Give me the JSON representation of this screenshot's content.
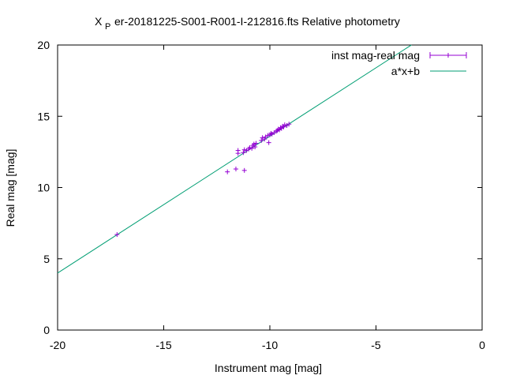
{
  "chart_data": {
    "type": "scatter",
    "title": "X_P er-20181225-S001-R001-I-212816.fts Relative photometry",
    "title_parts": {
      "main_glyph": "X",
      "sub_glyph": "P",
      "rest": "er-20181225-S001-R001-I-212816.fts Relative photometry"
    },
    "xlabel": "Instrument mag [mag]",
    "ylabel": "Real mag [mag]",
    "xlim": [
      -20,
      0
    ],
    "ylim": [
      0,
      20
    ],
    "xticks": [
      "-20",
      "-15",
      "-10",
      "-5",
      "0"
    ],
    "yticks": [
      "0",
      "5",
      "10",
      "15",
      "20"
    ],
    "grid": false,
    "legend_position": "top-right",
    "series": [
      {
        "name": "inst mag-real mag",
        "kind": "points-with-errorbars",
        "color": "#9400d3",
        "points": [
          [
            -17.2,
            6.7
          ],
          [
            -12.0,
            11.1
          ],
          [
            -11.6,
            11.3
          ],
          [
            -11.2,
            11.2
          ],
          [
            -11.5,
            12.4
          ],
          [
            -11.5,
            12.6
          ],
          [
            -11.25,
            12.45
          ],
          [
            -11.2,
            12.65
          ],
          [
            -11.1,
            12.6
          ],
          [
            -11.0,
            12.7
          ],
          [
            -10.95,
            12.8
          ],
          [
            -10.85,
            12.75
          ],
          [
            -10.8,
            12.95
          ],
          [
            -10.75,
            13.05
          ],
          [
            -10.7,
            12.85
          ],
          [
            -10.65,
            13.1
          ],
          [
            -10.4,
            13.3
          ],
          [
            -10.35,
            13.5
          ],
          [
            -10.25,
            13.4
          ],
          [
            -10.2,
            13.55
          ],
          [
            -10.1,
            13.65
          ],
          [
            -10.05,
            13.15
          ],
          [
            -10.0,
            13.7
          ],
          [
            -9.95,
            13.8
          ],
          [
            -9.9,
            13.75
          ],
          [
            -9.8,
            13.85
          ],
          [
            -9.7,
            13.95
          ],
          [
            -9.65,
            14.0
          ],
          [
            -9.6,
            14.1
          ],
          [
            -9.55,
            14.05
          ],
          [
            -9.5,
            14.2
          ],
          [
            -9.45,
            14.15
          ],
          [
            -9.4,
            14.3
          ],
          [
            -9.35,
            14.25
          ],
          [
            -9.3,
            14.4
          ],
          [
            -9.2,
            14.35
          ],
          [
            -9.1,
            14.45
          ]
        ]
      },
      {
        "name": "a*x+b",
        "kind": "line",
        "color": "#009e73",
        "slope": 0.96,
        "intercept": 23.2,
        "x_range": [
          -20,
          -3.33
        ]
      }
    ]
  }
}
